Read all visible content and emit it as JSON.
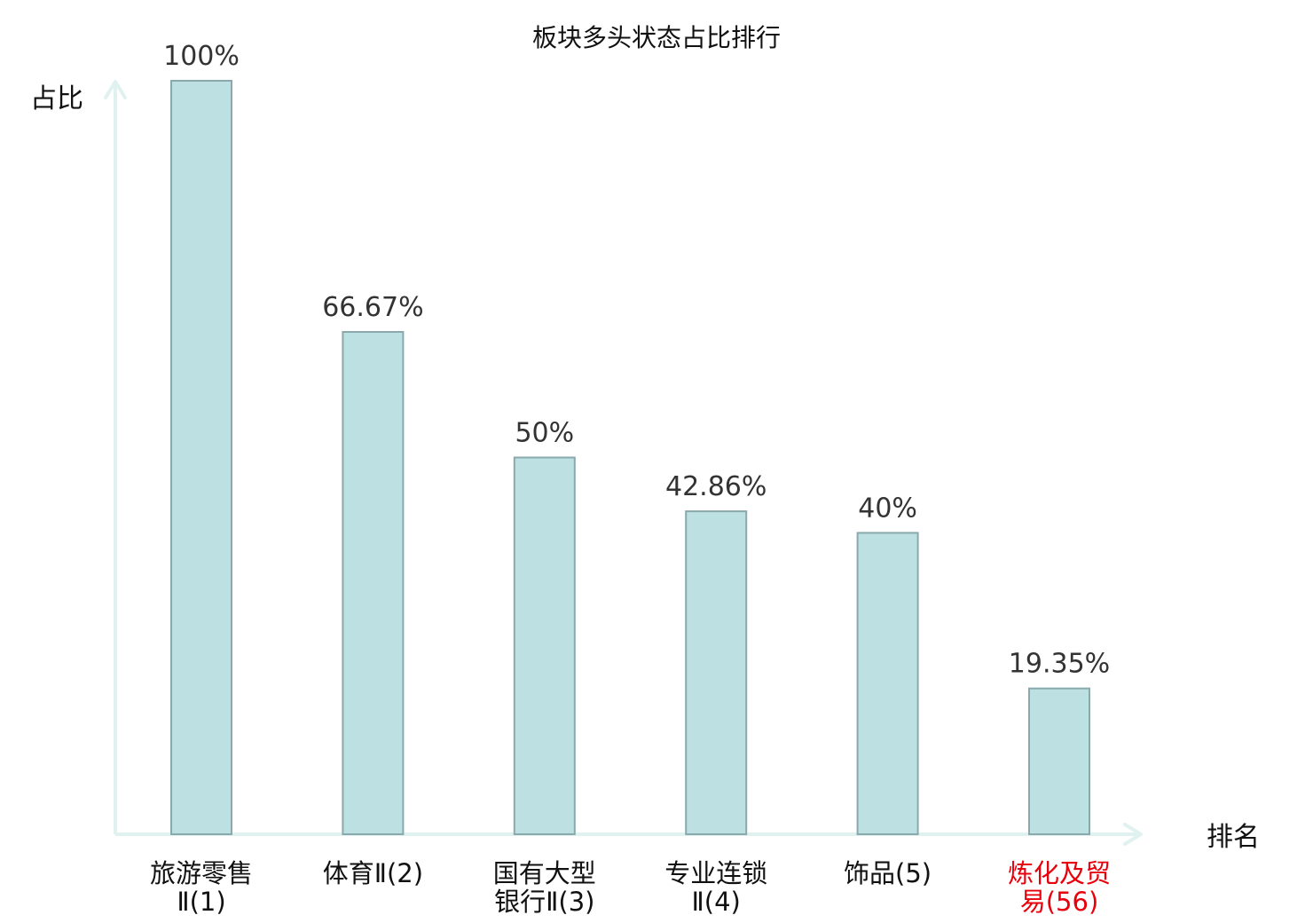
{
  "chart_data": {
    "type": "bar",
    "title": "板块多头状态占比排行",
    "ylabel": "占比",
    "xlabel": "排名",
    "ylim": [
      0,
      100
    ],
    "grid": false,
    "categories": [
      {
        "lines": [
          "旅游零售",
          "Ⅱ(1)"
        ],
        "highlight": false
      },
      {
        "lines": [
          "体育Ⅱ(2)"
        ],
        "highlight": false
      },
      {
        "lines": [
          "国有大型",
          "银行Ⅱ(3)"
        ],
        "highlight": false
      },
      {
        "lines": [
          "专业连锁",
          "Ⅱ(4)"
        ],
        "highlight": false
      },
      {
        "lines": [
          "饰品(5)"
        ],
        "highlight": false
      },
      {
        "lines": [
          "炼化及贸",
          "易(56)"
        ],
        "highlight": true
      }
    ],
    "values": [
      100,
      66.67,
      50,
      42.86,
      40,
      19.35
    ],
    "value_labels": [
      "100%",
      "66.67%",
      "50%",
      "42.86%",
      "40%",
      "19.35%"
    ],
    "colors": {
      "bar_fill": "#bde0e3",
      "bar_stroke": "#8aa9ac",
      "axis": "#e0f2ef",
      "highlight_text": "#e8000b"
    }
  }
}
